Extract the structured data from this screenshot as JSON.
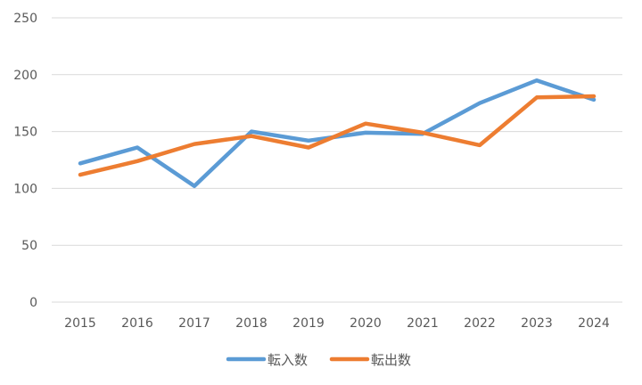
{
  "chart_data": {
    "type": "line",
    "categories": [
      "2015",
      "2016",
      "2017",
      "2018",
      "2019",
      "2020",
      "2021",
      "2022",
      "2023",
      "2024"
    ],
    "series": [
      {
        "name": "転入数",
        "color": "#5b9bd5",
        "values": [
          122,
          136,
          102,
          150,
          142,
          149,
          148,
          175,
          195,
          178
        ]
      },
      {
        "name": "転出数",
        "color": "#ed7d31",
        "values": [
          112,
          124,
          139,
          146,
          136,
          157,
          149,
          138,
          180,
          181
        ]
      }
    ],
    "yticks": [
      "0",
      "50",
      "100",
      "150",
      "200",
      "250"
    ],
    "ylim": [
      0,
      250
    ],
    "grid": true,
    "legend_position": "bottom"
  }
}
